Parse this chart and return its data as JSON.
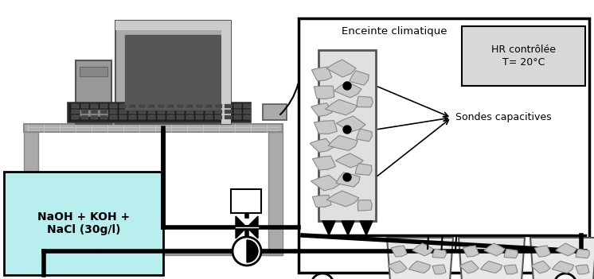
{
  "bg_color": "#ffffff",
  "enclosure_label": "Enceinte climatique",
  "hr_label": "HR contrôlée\nT= 20°C",
  "sondes_label": "Sondes capacitives",
  "solution_label": "NaOH + KOH +\nNaCl (30g/l)",
  "figsize": [
    7.46,
    3.51
  ],
  "dpi": 100
}
